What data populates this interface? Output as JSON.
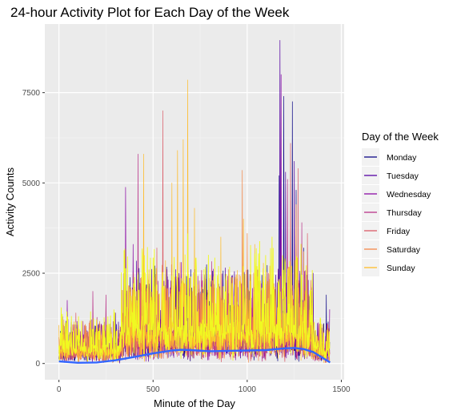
{
  "chart_data": {
    "type": "line",
    "title": "24-hour Activity Plot for Each Day of the Week",
    "xlabel": "Minute of the Day",
    "ylabel": "Activity Counts",
    "xlim": [
      -75,
      1515
    ],
    "ylim": [
      -450,
      9400
    ],
    "xticks": [
      0,
      500,
      1000,
      1500
    ],
    "yticks": [
      0,
      2500,
      5000,
      7500
    ],
    "grid": true,
    "legend": {
      "title": "Day of the Week",
      "position": "right"
    },
    "series": [
      {
        "name": "Monday",
        "color": "#0d0887",
        "peaks": [
          [
            1195,
            7400
          ],
          [
            1240,
            7250
          ],
          [
            1170,
            5200
          ],
          [
            1260,
            4800
          ],
          [
            480,
            2200
          ],
          [
            700,
            2600
          ],
          [
            1300,
            3200
          ],
          [
            1420,
            1900
          ]
        ]
      },
      {
        "name": "Tuesday",
        "color": "#5402a3",
        "peaks": [
          [
            1175,
            8950
          ],
          [
            1205,
            5300
          ],
          [
            1250,
            5600
          ],
          [
            850,
            2200
          ],
          [
            620,
            2600
          ],
          [
            300,
            1400
          ],
          [
            1350,
            2500
          ]
        ]
      },
      {
        "name": "Wednesday",
        "color": "#8b0aa5",
        "peaks": [
          [
            355,
            4880
          ],
          [
            395,
            3300
          ],
          [
            470,
            2300
          ],
          [
            1180,
            8000
          ],
          [
            1230,
            4500
          ],
          [
            20,
            1300
          ],
          [
            45,
            1750
          ],
          [
            1440,
            1500
          ]
        ]
      },
      {
        "name": "Thursday",
        "color": "#b93289",
        "peaks": [
          [
            420,
            5800
          ],
          [
            180,
            2000
          ],
          [
            250,
            1900
          ],
          [
            1215,
            5100
          ],
          [
            1290,
            3900
          ],
          [
            610,
            1800
          ],
          [
            930,
            1600
          ]
        ]
      },
      {
        "name": "Friday",
        "color": "#db5c68",
        "peaks": [
          [
            552,
            7000
          ],
          [
            520,
            3200
          ],
          [
            1230,
            6100
          ],
          [
            1270,
            5400
          ],
          [
            1320,
            3600
          ],
          [
            700,
            2100
          ],
          [
            90,
            1400
          ]
        ]
      },
      {
        "name": "Saturday",
        "color": "#f48849",
        "peaks": [
          [
            975,
            5350
          ],
          [
            1000,
            3600
          ],
          [
            1260,
            4400
          ],
          [
            1300,
            3100
          ],
          [
            820,
            2400
          ],
          [
            900,
            2600
          ],
          [
            1100,
            2200
          ]
        ]
      },
      {
        "name": "Sunday",
        "color": "#febc2a",
        "peaks": [
          [
            685,
            7850
          ],
          [
            660,
            6200
          ],
          [
            630,
            5900
          ],
          [
            600,
            5000
          ],
          [
            450,
            5800
          ],
          [
            720,
            4300
          ],
          [
            860,
            3500
          ],
          [
            980,
            4000
          ],
          [
            1040,
            3300
          ],
          [
            1120,
            2700
          ]
        ]
      }
    ],
    "extra_series_colors": [
      "#f0f921"
    ],
    "smooth": {
      "color": "#3366ff",
      "x": [
        0,
        100,
        200,
        300,
        400,
        500,
        600,
        650,
        700,
        800,
        900,
        1000,
        1100,
        1200,
        1250,
        1300,
        1350,
        1400,
        1440
      ],
      "y": [
        60,
        20,
        30,
        90,
        180,
        280,
        360,
        380,
        370,
        340,
        350,
        360,
        370,
        420,
        430,
        400,
        320,
        160,
        30
      ]
    }
  }
}
